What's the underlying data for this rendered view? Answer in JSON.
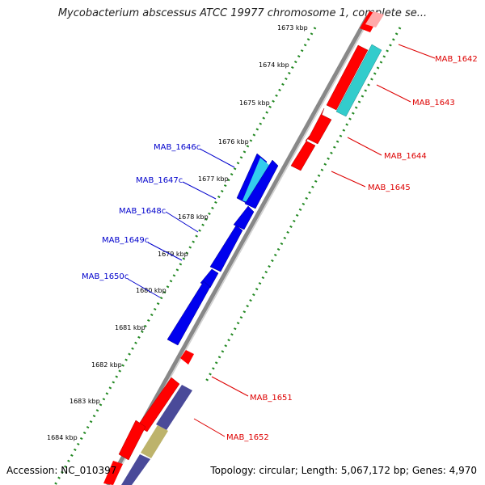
{
  "title": "Mycobacterium abscessus ATCC 19977 chromosome 1, complete se...",
  "accession": "Accession: NC_010397",
  "topology": "Topology: circular; Length: 5,067,172 bp; Genes: 4,970",
  "kbp_ticks": [
    "1673 kbp",
    "1674 kbp",
    "1675 kbp",
    "1676 kbp",
    "1677 kbp",
    "1678 kbp",
    "1679 kbp",
    "1680 kbp",
    "1681 kbp",
    "1682 kbp",
    "1683 kbp",
    "1684 kbp"
  ],
  "genes_forward": [
    {
      "label": "MAB_1642",
      "color": "#ff0000"
    },
    {
      "label": "MAB_1643",
      "color": "#33cccc"
    },
    {
      "label": "MAB_1644",
      "color": "#ff0000"
    },
    {
      "label": "MAB_1645",
      "color": "#ff0000"
    },
    {
      "label": "MAB_1651",
      "color": "#ff0000"
    },
    {
      "label": "MAB_1652",
      "color": "#ff0000"
    }
  ],
  "genes_reverse": [
    {
      "label": "MAB_1646c",
      "color": "#0000ee"
    },
    {
      "label": "MAB_1647c",
      "color": "#0000ee"
    },
    {
      "label": "MAB_1648c",
      "color": "#0000ee"
    },
    {
      "label": "MAB_1649c",
      "color": "#0000ee"
    },
    {
      "label": "MAB_1650c",
      "color": "#0000ee"
    }
  ],
  "colors": {
    "forward_label": "#dd0000",
    "reverse_label": "#0000cc",
    "backbone": "#888888",
    "tick": "#228822",
    "cds_red": "#ff0000",
    "cds_blue": "#0000ee",
    "cds_cyan": "#33cccc",
    "cds_purple": "#4a4a99",
    "cds_olive": "#bdb36b"
  }
}
